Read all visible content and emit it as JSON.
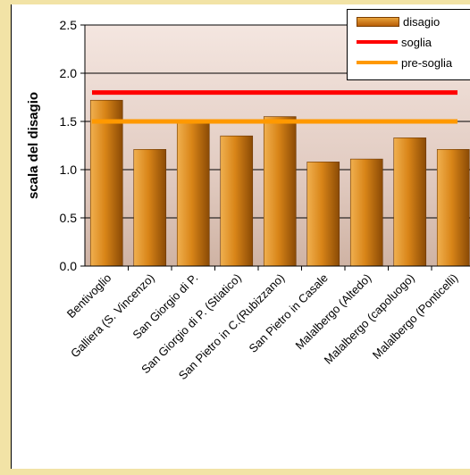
{
  "chart_data": {
    "type": "bar",
    "ylabel": "scala del disagio",
    "ylim": [
      0,
      2.5
    ],
    "yticks": [
      "0.0",
      "0.5",
      "1.0",
      "1.5",
      "2.0",
      "2.5"
    ],
    "categories": [
      "Bentivoglio",
      "Galliera (S. Vincenzo)",
      "San Giorgio di P.",
      "San Giorgio di P. (Stiatico)",
      "San Pietro in C.(Rubizzano)",
      "San Pietro in Casale",
      "Malalbergo (Altedo)",
      "Malalbergo (capoluogo)",
      "Malalbergo (Ponticelli)"
    ],
    "series": [
      {
        "name": "disagio",
        "values": [
          1.72,
          1.21,
          1.49,
          1.35,
          1.55,
          1.08,
          1.11,
          1.33,
          1.21
        ]
      }
    ],
    "lines": [
      {
        "name": "soglia",
        "value": 1.8,
        "color": "#ff0000"
      },
      {
        "name": "pre-soglia",
        "value": 1.5,
        "color": "#ff9900"
      }
    ],
    "grid": true,
    "legend": "top-right"
  },
  "legend": {
    "disagio": "disagio",
    "soglia": "soglia",
    "pre_soglia": "pre-soglia"
  }
}
